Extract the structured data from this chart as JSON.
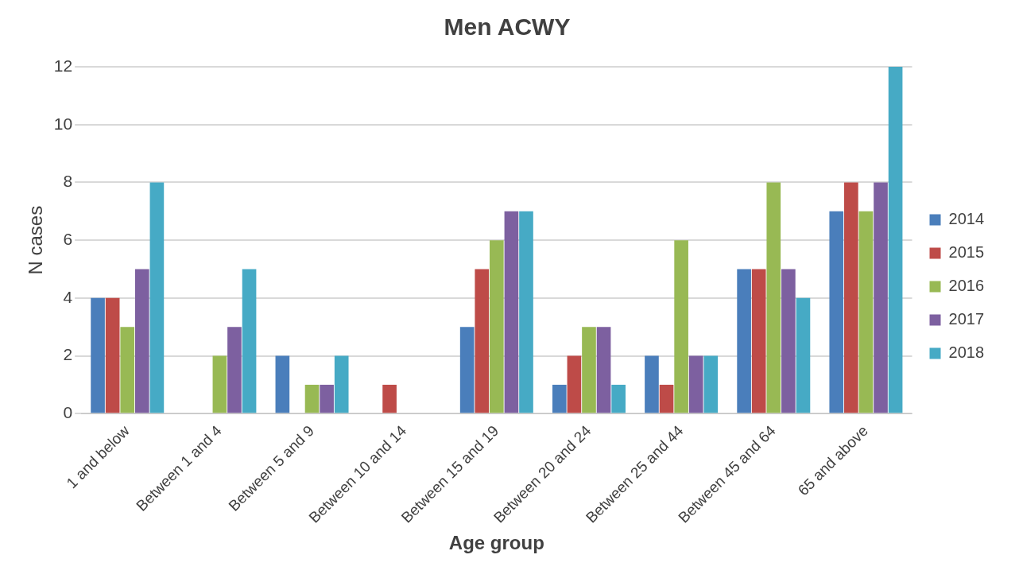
{
  "chart_data": {
    "type": "bar",
    "title": "Men ACWY",
    "xlabel": "Age group",
    "ylabel": "N cases",
    "categories": [
      "1 and below",
      "Between 1 and 4",
      "Between 5 and 9",
      "Between 10 and 14",
      "Between 15 and 19",
      "Between 20 and 24",
      "Between 25 and 44",
      "Between 45 and 64",
      "65 and above"
    ],
    "series": [
      {
        "name": "2014",
        "color": "#4a7ebb",
        "values": [
          4,
          0,
          2,
          0,
          3,
          1,
          2,
          5,
          7
        ]
      },
      {
        "name": "2015",
        "color": "#be4b48",
        "values": [
          4,
          0,
          0,
          1,
          5,
          2,
          1,
          5,
          8
        ]
      },
      {
        "name": "2016",
        "color": "#98b954",
        "values": [
          3,
          2,
          1,
          0,
          6,
          3,
          6,
          8,
          7
        ]
      },
      {
        "name": "2017",
        "color": "#7d60a0",
        "values": [
          5,
          3,
          1,
          0,
          7,
          3,
          2,
          5,
          8
        ]
      },
      {
        "name": "2018",
        "color": "#46aac5",
        "values": [
          8,
          5,
          2,
          0,
          7,
          1,
          2,
          4,
          12
        ]
      }
    ],
    "ylim": [
      0,
      12
    ],
    "yticks": [
      0,
      2,
      4,
      6,
      8,
      10,
      12
    ],
    "grid": "y",
    "legend": "right"
  }
}
